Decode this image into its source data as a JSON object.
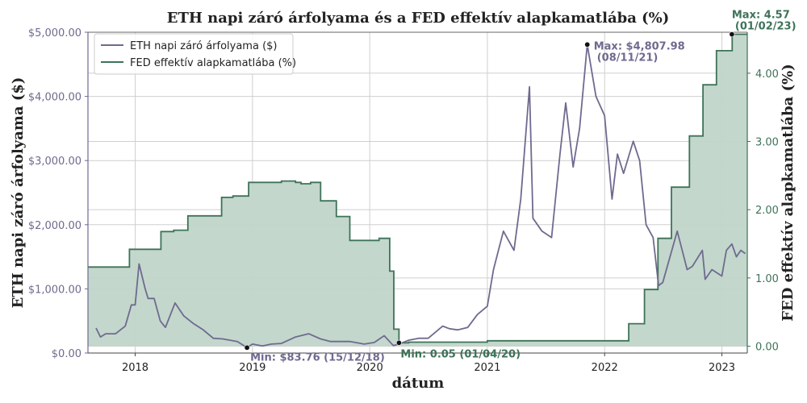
{
  "chart_data": {
    "type": "line",
    "title": "ETH napi záró árfolyama és a FED effektív alapkamatlába (%)",
    "xlabel": "dátum",
    "ylabel_left": "ETH napi záró árfolyama ($)",
    "ylabel_right": "FED effektív alapkamatlába (%)",
    "xlim": [
      "2017-08-07",
      "2023-03-21"
    ],
    "ylim_left": [
      0,
      5000
    ],
    "ylim_right": [
      -0.1,
      4.6
    ],
    "x_ticks": [
      "2018",
      "2019",
      "2020",
      "2021",
      "2022",
      "2023"
    ],
    "y_ticks_left": [
      0,
      1000,
      2000,
      3000,
      4000,
      5000
    ],
    "y_tick_labels_left": [
      "$0.00",
      "$1,000.00",
      "$2,000.00",
      "$3,000.00",
      "$4,000.00",
      "$5,000.00"
    ],
    "y_ticks_right": [
      0,
      1,
      2,
      3,
      4
    ],
    "y_tick_labels_right": [
      "0.00",
      "1.00",
      "2.00",
      "3.00",
      "4.00"
    ],
    "grid": true,
    "legend_position": "top-left",
    "colors": {
      "eth": "#6f6a8f",
      "fed": "#3e7358",
      "fed_fill": "#c0d5c9"
    },
    "series": [
      {
        "name": "ETH napi záró árfolyama ($)",
        "axis": "left",
        "x": [
          "2017-09-01",
          "2017-09-15",
          "2017-10-01",
          "2017-11-01",
          "2017-12-01",
          "2017-12-20",
          "2018-01-01",
          "2018-01-13",
          "2018-02-01",
          "2018-02-10",
          "2018-03-01",
          "2018-03-20",
          "2018-04-05",
          "2018-05-05",
          "2018-06-01",
          "2018-07-01",
          "2018-08-01",
          "2018-09-01",
          "2018-10-01",
          "2018-11-15",
          "2018-12-15",
          "2019-01-01",
          "2019-02-01",
          "2019-03-01",
          "2019-04-01",
          "2019-05-15",
          "2019-06-25",
          "2019-08-01",
          "2019-09-01",
          "2019-10-01",
          "2019-11-01",
          "2019-12-15",
          "2020-01-15",
          "2020-02-15",
          "2020-03-12",
          "2020-03-15",
          "2020-04-01",
          "2020-05-01",
          "2020-06-01",
          "2020-07-01",
          "2020-08-15",
          "2020-09-05",
          "2020-10-01",
          "2020-11-01",
          "2020-12-01",
          "2021-01-01",
          "2021-01-20",
          "2021-02-20",
          "2021-03-25",
          "2021-04-15",
          "2021-05-12",
          "2021-05-23",
          "2021-06-20",
          "2021-07-20",
          "2021-08-15",
          "2021-09-02",
          "2021-09-25",
          "2021-10-15",
          "2021-11-08",
          "2021-12-05",
          "2022-01-01",
          "2022-01-24",
          "2022-02-10",
          "2022-03-01",
          "2022-03-31",
          "2022-04-20",
          "2022-05-10",
          "2022-06-01",
          "2022-06-18",
          "2022-07-01",
          "2022-08-01",
          "2022-08-15",
          "2022-09-15",
          "2022-10-01",
          "2022-11-01",
          "2022-11-10",
          "2022-12-01",
          "2023-01-01",
          "2023-01-15",
          "2023-02-01",
          "2023-02-15",
          "2023-03-01",
          "2023-03-15"
        ],
        "values": [
          390,
          250,
          300,
          300,
          420,
          750,
          750,
          1390,
          1000,
          850,
          850,
          500,
          400,
          780,
          580,
          460,
          360,
          230,
          220,
          180,
          84,
          140,
          110,
          140,
          150,
          250,
          300,
          220,
          180,
          180,
          180,
          140,
          165,
          270,
          130,
          115,
          140,
          200,
          230,
          230,
          420,
          380,
          360,
          400,
          600,
          730,
          1300,
          1900,
          1600,
          2400,
          4150,
          2100,
          1900,
          1800,
          3100,
          3900,
          2900,
          3500,
          4807.98,
          4000,
          3700,
          2400,
          3100,
          2800,
          3300,
          3000,
          2000,
          1800,
          1050,
          1100,
          1650,
          1900,
          1300,
          1350,
          1600,
          1150,
          1300,
          1200,
          1600,
          1700,
          1500,
          1600,
          1550
        ]
      },
      {
        "name": "FED effektív alapkamatlába (%)",
        "axis": "right",
        "x": [
          "2017-08-07",
          "2017-12-14",
          "2018-02-01",
          "2018-03-22",
          "2018-05-01",
          "2018-06-14",
          "2018-08-01",
          "2018-09-27",
          "2018-11-01",
          "2018-12-20",
          "2019-01-15",
          "2019-02-01",
          "2019-03-01",
          "2019-04-01",
          "2019-05-15",
          "2019-06-01",
          "2019-07-01",
          "2019-08-01",
          "2019-09-19",
          "2019-10-31",
          "2019-11-15",
          "2020-01-30",
          "2020-03-03",
          "2020-03-16",
          "2020-04-01",
          "2020-05-01",
          "2021-01-01",
          "2022-03-17",
          "2022-05-05",
          "2022-06-16",
          "2022-07-28",
          "2022-09-22",
          "2022-11-03",
          "2022-12-15",
          "2023-02-02",
          "2023-03-21"
        ],
        "values": [
          1.16,
          1.42,
          1.42,
          1.68,
          1.7,
          1.91,
          1.91,
          2.18,
          2.2,
          2.4,
          2.4,
          2.4,
          2.4,
          2.42,
          2.4,
          2.38,
          2.4,
          2.13,
          1.9,
          1.55,
          1.55,
          1.58,
          1.1,
          0.25,
          0.05,
          0.06,
          0.08,
          0.33,
          0.83,
          1.58,
          2.33,
          3.08,
          3.83,
          4.33,
          4.57,
          4.57
        ]
      }
    ],
    "legend": [
      "ETH napi záró árfolyama ($)",
      "FED effektív alapkamatlába (%)"
    ],
    "annotations": [
      {
        "series": "eth",
        "x": "2021-11-08",
        "y": 4807.98,
        "text_line1": "Max: $4,807.98",
        "text_line2": "(08/11/21)"
      },
      {
        "series": "eth",
        "x": "2018-12-15",
        "y": 83.76,
        "text_line1": "Min: $83.76 (15/12/18)",
        "text_line2": ""
      },
      {
        "series": "fed",
        "x": "2023-02-01",
        "y": 4.57,
        "text_line1": "Max: 4.57",
        "text_line2": "(01/02/23)"
      },
      {
        "series": "fed",
        "x": "2020-04-01",
        "y": 0.05,
        "text_line1": "Min: 0.05 (01/04/20)",
        "text_line2": ""
      }
    ]
  }
}
